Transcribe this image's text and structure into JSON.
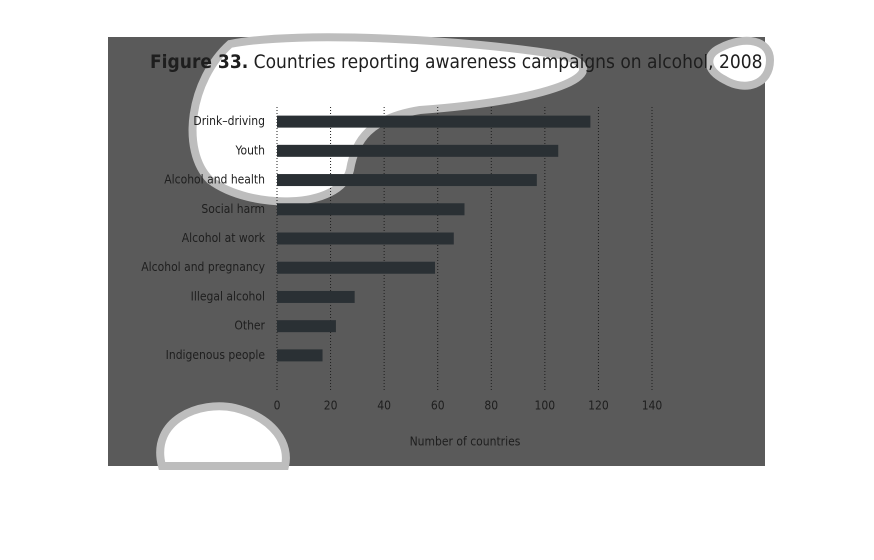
{
  "chart_data": {
    "type": "hbar",
    "figure_label": "Figure 33.",
    "title": "Countries reporting awareness campaigns on alcohol, 2008",
    "categories": [
      "Drink–driving",
      "Youth",
      "Alcohol and health",
      "Social harm",
      "Alcohol at work",
      "Alcohol and pregnancy",
      "Illegal alcohol",
      "Other",
      "Indigenous people"
    ],
    "values": [
      117,
      105,
      97,
      70,
      66,
      59,
      29,
      22,
      17
    ],
    "color": "#2a3034",
    "xlim": [
      0,
      140
    ],
    "xticks": [
      0,
      20,
      40,
      60,
      80,
      100,
      120,
      140
    ],
    "xlabel": "Number of countries",
    "grid": true
  }
}
